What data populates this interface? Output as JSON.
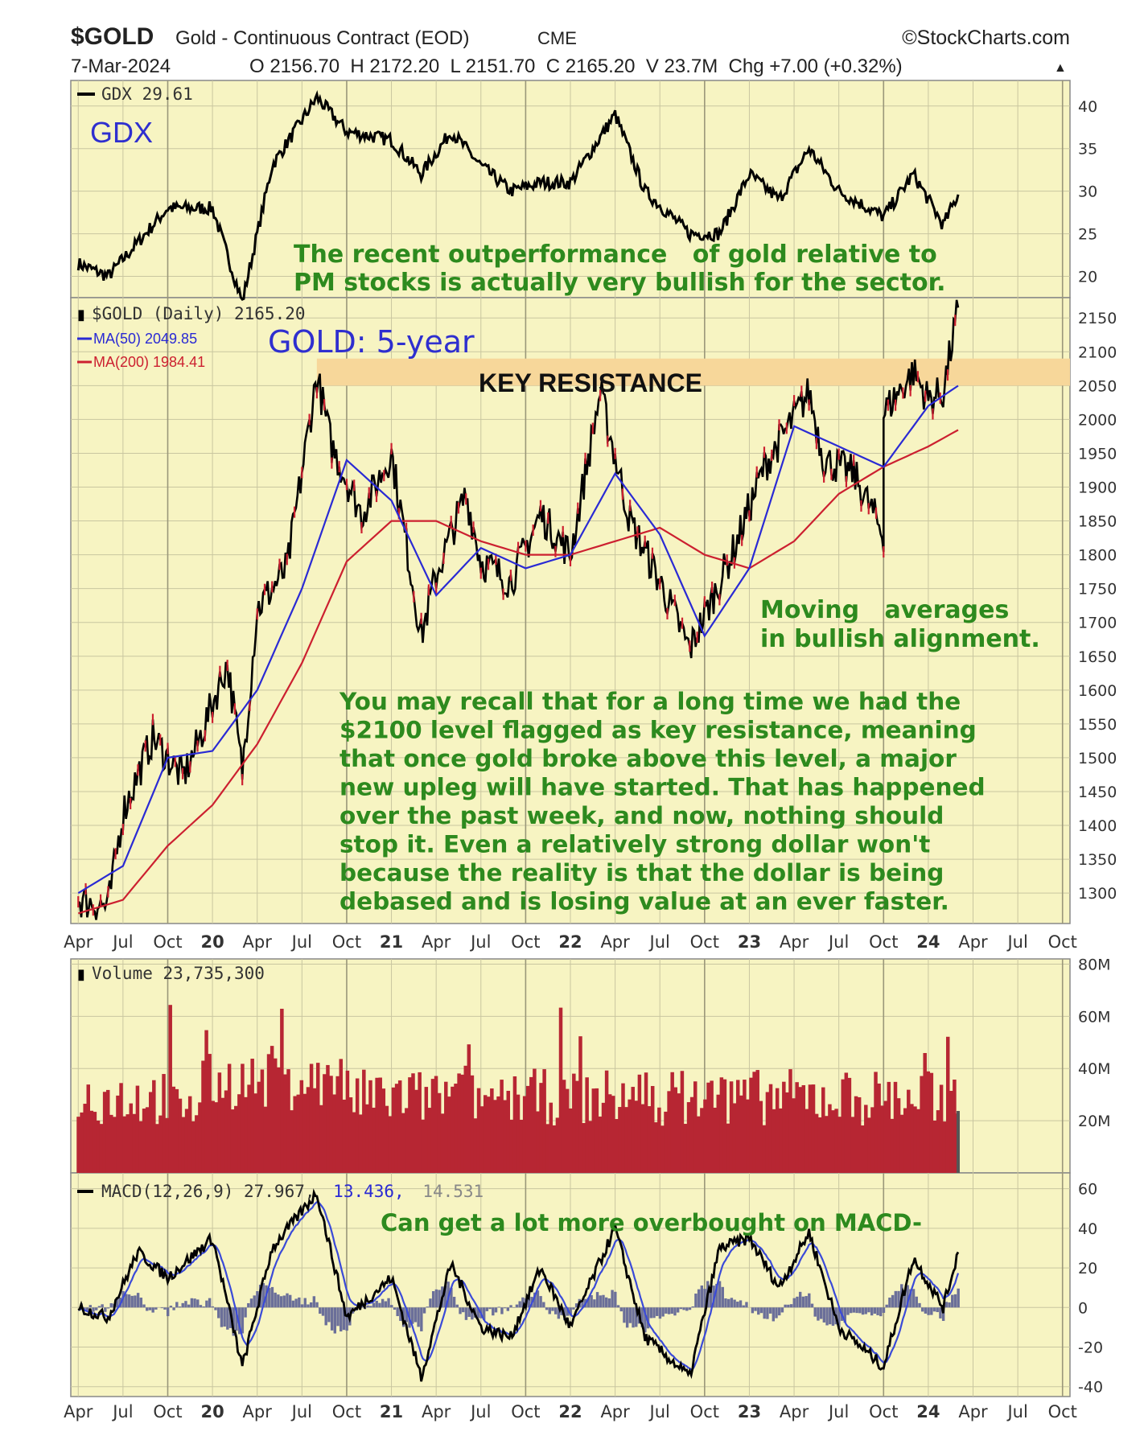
{
  "header": {
    "symbol": "$GOLD",
    "name": "Gold - Continuous Contract (EOD)",
    "exchange": "CME",
    "source": "©StockCharts.com",
    "date": "7-Mar-2024",
    "ohlc": "O 2156.70  H 2172.20  L 2151.70  C 2165.20  V 23.7M  Chg +7.00 (+0.32%)",
    "chg_arrow": "▲"
  },
  "colors": {
    "panel_bg": "#f7f4c2",
    "grid": "#c9c6a0",
    "price": "#000000",
    "ma50": "#2a2ad4",
    "ma200": "#cc2030",
    "volume": "#b72633",
    "macd": "#000000",
    "signal": "#3a4ad8",
    "histogram": "#6b6f99",
    "resistance_band": "#f7d79a",
    "annotation": "#2d8a1e",
    "label_blue": "#2f2fcf"
  },
  "x_axis": {
    "labels": [
      "Apr",
      "Jul",
      "Oct",
      "20",
      "Apr",
      "Jul",
      "Oct",
      "21",
      "Apr",
      "Jul",
      "Oct",
      "22",
      "Apr",
      "Jul",
      "Oct",
      "23",
      "Apr",
      "Jul",
      "Oct",
      "24",
      "Apr",
      "Jul",
      "Oct"
    ],
    "year_markers": [
      "20",
      "21",
      "22",
      "23",
      "24"
    ]
  },
  "panels": {
    "gdx": {
      "legend": "GDX 29.61",
      "label": "GDX",
      "annotation": [
        "The recent outperformance   of gold relative to",
        "PM stocks is actually very bullish for the sector."
      ]
    },
    "gold": {
      "legend_main": "$GOLD (Daily) 2165.20",
      "legend_ma50": "MA(50) 2049.85",
      "legend_ma200": "MA(200) 1984.41",
      "label": "GOLD: 5-year",
      "resistance_label": "KEY RESISTANCE",
      "annotation_ma": [
        "Moving   averages",
        "in bullish alignment."
      ],
      "annotation_main": [
        "You may recall that for a long time we had the",
        "$2100 level flagged as key resistance, meaning",
        "that once gold broke above this level, a major",
        "new upleg will have started. That has happened",
        "over the past week, and now, nothing should",
        "stop it. Even a relatively strong dollar won't",
        "because the reality is that the dollar is being",
        "debased and is losing value at an ever faster."
      ]
    },
    "volume": {
      "legend": "Volume 23,735,300"
    },
    "macd": {
      "legend_prefix": "MACD(12,26,9) 27.967,",
      "legend_signal": "13.436,",
      "legend_hist": "14.531",
      "annotation": "Can get a lot more overbought on MACD-"
    }
  },
  "chart_data": [
    {
      "type": "line",
      "title": "GDX",
      "series": [
        {
          "name": "GDX",
          "x": [
            "2019-04",
            "2019-06",
            "2019-08",
            "2019-10",
            "2020-01",
            "2020-03",
            "2020-05",
            "2020-08",
            "2020-10",
            "2021-01",
            "2021-03",
            "2021-05",
            "2021-07",
            "2021-09",
            "2021-11",
            "2022-01",
            "2022-04",
            "2022-06",
            "2022-09",
            "2022-11",
            "2023-01",
            "2023-03",
            "2023-05",
            "2023-07",
            "2023-10",
            "2023-12",
            "2024-02",
            "2024-03"
          ],
          "values": [
            21.5,
            20,
            24,
            28,
            28,
            17,
            33,
            41,
            37,
            36,
            32,
            37,
            33,
            30,
            31,
            31,
            39,
            30,
            25,
            25,
            32,
            29,
            35,
            30,
            27,
            32,
            26,
            29.61
          ]
        }
      ],
      "yticks": [
        20,
        25,
        30,
        35,
        40
      ],
      "ylim": [
        17.5,
        43
      ]
    },
    {
      "type": "line",
      "title": "$GOLD (Daily) 2165.20",
      "series": [
        {
          "name": "$GOLD",
          "x": [
            "2019-04",
            "2019-06",
            "2019-07",
            "2019-09",
            "2019-11",
            "2019-12",
            "2020-02",
            "2020-03",
            "2020-04",
            "2020-06",
            "2020-08",
            "2020-09",
            "2020-11",
            "2021-01",
            "2021-03",
            "2021-04",
            "2021-06",
            "2021-07",
            "2021-09",
            "2021-11",
            "2022-01",
            "2022-03",
            "2022-05",
            "2022-07",
            "2022-09",
            "2022-11",
            "2022-12",
            "2023-02",
            "2023-05",
            "2023-06",
            "2023-08",
            "2023-10",
            "2023-10",
            "2023-12",
            "2024-01",
            "2024-02",
            "2024-03"
          ],
          "values": [
            1290,
            1280,
            1420,
            1530,
            1470,
            1520,
            1640,
            1480,
            1720,
            1780,
            2065,
            1960,
            1860,
            1950,
            1680,
            1770,
            1890,
            1790,
            1760,
            1860,
            1800,
            2040,
            1850,
            1760,
            1660,
            1760,
            1810,
            1930,
            2040,
            1940,
            1920,
            1830,
            2010,
            2070,
            2030,
            2040,
            2165.2
          ]
        },
        {
          "name": "MA(50)",
          "x": [
            "2019-04",
            "2019-07",
            "2019-10",
            "2020-01",
            "2020-04",
            "2020-07",
            "2020-10",
            "2021-01",
            "2021-04",
            "2021-07",
            "2021-10",
            "2022-01",
            "2022-04",
            "2022-07",
            "2022-10",
            "2023-01",
            "2023-04",
            "2023-07",
            "2023-10",
            "2024-01",
            "2024-03"
          ],
          "values": [
            1300,
            1340,
            1500,
            1510,
            1600,
            1750,
            1940,
            1880,
            1740,
            1810,
            1780,
            1800,
            1920,
            1830,
            1680,
            1780,
            1990,
            1960,
            1930,
            2020,
            2049.85
          ]
        },
        {
          "name": "MA(200)",
          "x": [
            "2019-04",
            "2019-07",
            "2019-10",
            "2020-01",
            "2020-04",
            "2020-07",
            "2020-10",
            "2021-01",
            "2021-04",
            "2021-07",
            "2021-10",
            "2022-01",
            "2022-04",
            "2022-07",
            "2022-10",
            "2023-01",
            "2023-04",
            "2023-07",
            "2023-10",
            "2024-01",
            "2024-03"
          ],
          "values": [
            1270,
            1290,
            1370,
            1430,
            1520,
            1640,
            1790,
            1850,
            1850,
            1820,
            1800,
            1800,
            1820,
            1840,
            1800,
            1780,
            1820,
            1890,
            1930,
            1960,
            1984.41
          ]
        }
      ],
      "yticks": [
        1300,
        1350,
        1400,
        1450,
        1500,
        1550,
        1600,
        1650,
        1700,
        1750,
        1800,
        1850,
        1900,
        1950,
        2000,
        2050,
        2100,
        2150
      ],
      "ylim": [
        1255,
        2180
      ],
      "resistance_band": [
        2050,
        2090
      ]
    },
    {
      "type": "bar",
      "title": "Volume 23,735,300",
      "yticks": [
        "20M",
        "40M",
        "60M",
        "80M"
      ],
      "ylim": [
        0,
        82000000
      ],
      "last_value": 23735300
    },
    {
      "type": "line",
      "title": "MACD(12,26,9)",
      "series": [
        {
          "name": "MACD",
          "x": [
            "2019-04",
            "2019-06",
            "2019-08",
            "2019-10",
            "2020-01",
            "2020-03",
            "2020-05",
            "2020-08",
            "2020-10",
            "2021-01",
            "2021-03",
            "2021-05",
            "2021-07",
            "2021-09",
            "2021-11",
            "2022-01",
            "2022-04",
            "2022-06",
            "2022-09",
            "2022-11",
            "2023-01",
            "2023-03",
            "2023-05",
            "2023-07",
            "2023-10",
            "2023-12",
            "2024-02",
            "2024-03"
          ],
          "values": [
            0,
            -5,
            28,
            15,
            35,
            -30,
            30,
            58,
            -5,
            15,
            -35,
            22,
            -10,
            -15,
            20,
            -10,
            40,
            -15,
            -35,
            30,
            35,
            10,
            38,
            -10,
            -30,
            25,
            0,
            27.967
          ]
        },
        {
          "name": "Signal",
          "last": 13.436
        },
        {
          "name": "Histogram",
          "last": 14.531
        }
      ],
      "yticks": [
        -40,
        -20,
        0,
        20,
        40,
        60
      ],
      "ylim": [
        -45,
        68
      ]
    }
  ]
}
